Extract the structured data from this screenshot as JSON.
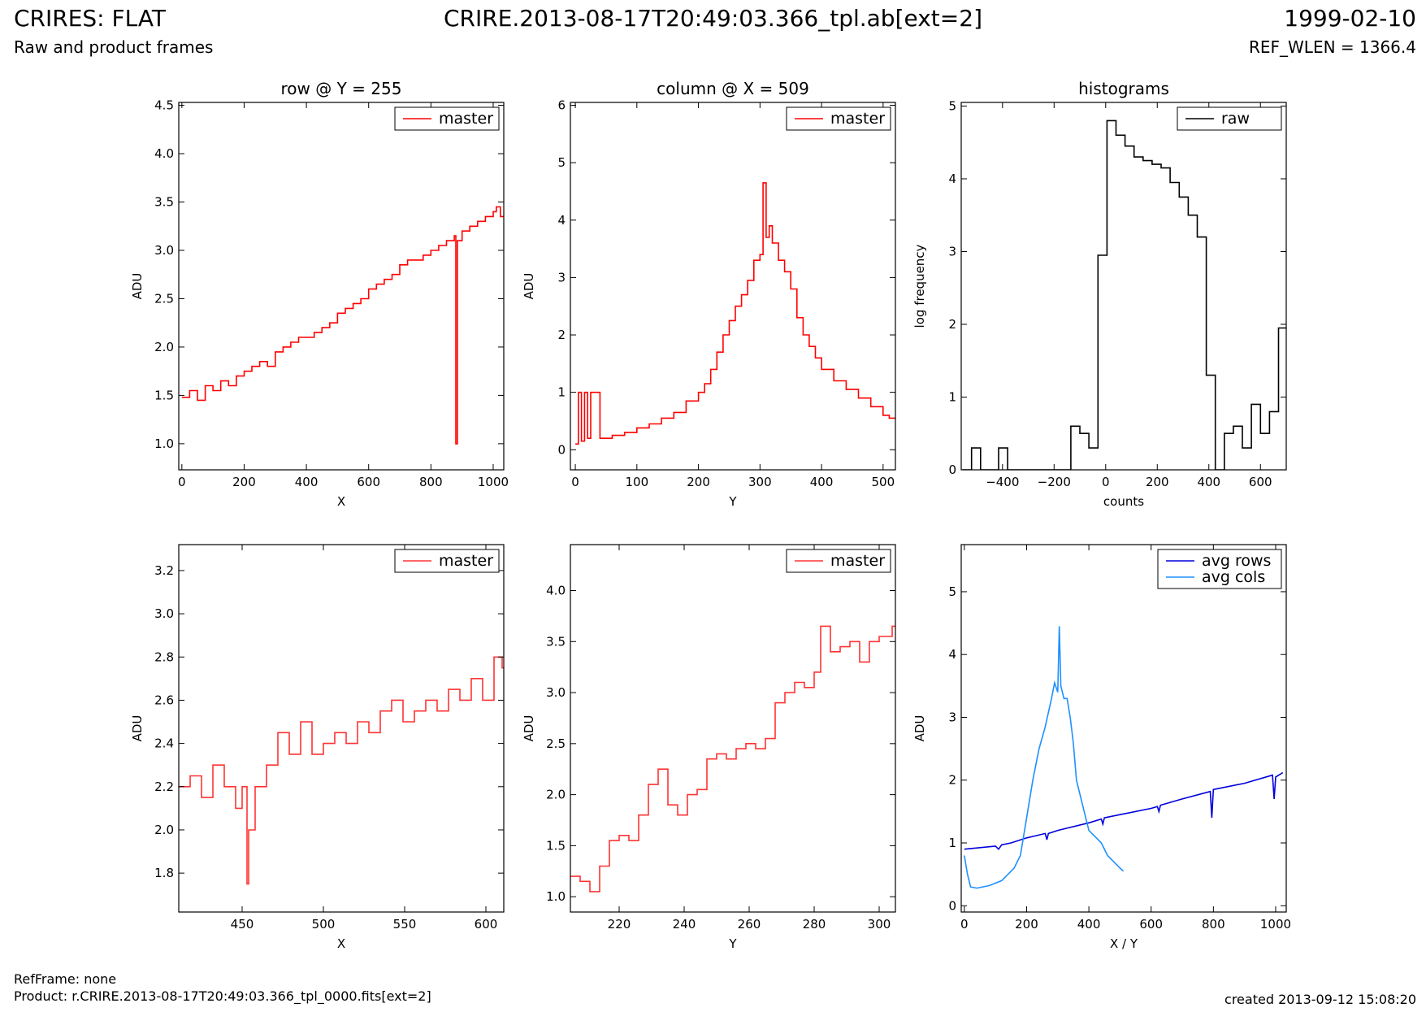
{
  "header": {
    "title": "CRIRES: FLAT",
    "center_title": "CRIRE.2013-08-17T20:49:03.366_tpl.ab[ext=2]",
    "date": "1999-02-10",
    "subtitle": "Raw and product frames",
    "ref_wlen": "REF_WLEN = 1366.4"
  },
  "footer": {
    "ref_frame": "RefFrame: none",
    "product": "Product: r.CRIRE.2013-08-17T20:49:03.366_tpl_0000.fits[ext=2]",
    "created": "created 2013-09-12 15:08:20"
  },
  "colors": {
    "master": "#ff0000",
    "master_zoom": "#ff3333",
    "raw": "#000000",
    "avg_rows": "#0000dd",
    "avg_cols": "#1e90ff"
  },
  "chart_data": [
    {
      "id": "row",
      "type": "line",
      "title": "row @ Y = 255",
      "xlabel": "X",
      "ylabel": "ADU",
      "xlim": [
        -10,
        1034
      ],
      "ylim": [
        0.73,
        4.53
      ],
      "xticks": [
        0,
        200,
        400,
        600,
        800,
        1000
      ],
      "yticks": [
        1.0,
        1.5,
        2.0,
        2.5,
        3.0,
        3.5,
        4.0,
        4.5
      ],
      "xtick_labels": [
        "0",
        "200",
        "400",
        "600",
        "800",
        "1000"
      ],
      "ytick_labels": [
        "1.0",
        "1.5",
        "2.0",
        "2.5",
        "3.0",
        "3.5",
        "4.0",
        "4.5"
      ],
      "legend": "top-right",
      "series": [
        {
          "name": "master",
          "color": "#ff0000",
          "style": "step",
          "x": [
            0,
            25,
            50,
            75,
            100,
            125,
            150,
            175,
            200,
            225,
            250,
            275,
            300,
            325,
            350,
            375,
            400,
            425,
            450,
            475,
            500,
            525,
            550,
            575,
            600,
            625,
            650,
            675,
            700,
            725,
            750,
            775,
            800,
            825,
            850,
            875,
            880,
            885,
            900,
            925,
            950,
            975,
            1000,
            1010,
            1023
          ],
          "values": [
            1.48,
            1.55,
            1.45,
            1.6,
            1.55,
            1.65,
            1.6,
            1.7,
            1.75,
            1.8,
            1.85,
            1.8,
            1.95,
            2.0,
            2.05,
            2.1,
            2.1,
            2.15,
            2.2,
            2.25,
            2.35,
            2.4,
            2.45,
            2.5,
            2.6,
            2.65,
            2.7,
            2.75,
            2.85,
            2.9,
            2.9,
            2.95,
            3.0,
            3.05,
            3.1,
            3.15,
            1.0,
            3.1,
            3.2,
            3.25,
            3.3,
            3.35,
            3.4,
            3.45,
            3.35
          ]
        }
      ]
    },
    {
      "id": "column",
      "type": "line",
      "title": "column @ X = 509",
      "xlabel": "Y",
      "ylabel": "ADU",
      "xlim": [
        -8,
        520
      ],
      "ylim": [
        -0.35,
        6.05
      ],
      "xticks": [
        0,
        100,
        200,
        300,
        400,
        500
      ],
      "yticks": [
        0,
        1,
        2,
        3,
        4,
        5,
        6
      ],
      "xtick_labels": [
        "0",
        "100",
        "200",
        "300",
        "400",
        "500"
      ],
      "ytick_labels": [
        "0",
        "1",
        "2",
        "3",
        "4",
        "5",
        "6"
      ],
      "legend": "top-right",
      "series": [
        {
          "name": "master",
          "color": "#ff0000",
          "style": "step",
          "x": [
            0,
            5,
            10,
            15,
            20,
            25,
            40,
            60,
            80,
            100,
            120,
            140,
            160,
            180,
            200,
            210,
            220,
            230,
            240,
            250,
            260,
            270,
            280,
            290,
            300,
            305,
            310,
            315,
            320,
            330,
            340,
            350,
            360,
            370,
            380,
            390,
            400,
            420,
            440,
            460,
            480,
            500,
            510
          ],
          "values": [
            0.1,
            1.0,
            0.15,
            1.0,
            0.2,
            1.0,
            0.2,
            0.25,
            0.3,
            0.38,
            0.45,
            0.55,
            0.65,
            0.85,
            1.0,
            1.15,
            1.4,
            1.7,
            2.0,
            2.25,
            2.5,
            2.7,
            2.95,
            3.3,
            3.4,
            4.65,
            3.7,
            3.9,
            3.6,
            3.3,
            3.1,
            2.8,
            2.3,
            2.0,
            1.8,
            1.6,
            1.4,
            1.2,
            1.05,
            0.9,
            0.75,
            0.6,
            0.55
          ]
        }
      ]
    },
    {
      "id": "histograms",
      "type": "line",
      "title": "histograms",
      "xlabel": "counts",
      "ylabel": "log frequency",
      "xlim": [
        -560,
        700
      ],
      "ylim": [
        0,
        5.05
      ],
      "xticks": [
        -400,
        -200,
        0,
        200,
        400,
        600
      ],
      "yticks": [
        0,
        1,
        2,
        3,
        4,
        5
      ],
      "xtick_labels": [
        "−400",
        "−200",
        "0",
        "200",
        "400",
        "600"
      ],
      "ytick_labels": [
        "0",
        "1",
        "2",
        "3",
        "4",
        "5"
      ],
      "legend": "top-right",
      "series": [
        {
          "name": "raw",
          "color": "#000000",
          "style": "step",
          "x": [
            -555,
            -520,
            -485,
            -450,
            -415,
            -380,
            -345,
            -310,
            -275,
            -240,
            -205,
            -170,
            -135,
            -100,
            -65,
            -30,
            5,
            40,
            75,
            110,
            145,
            180,
            215,
            250,
            285,
            320,
            355,
            390,
            425,
            460,
            495,
            530,
            565,
            600,
            635,
            670
          ],
          "values": [
            0,
            0.3,
            0,
            0,
            0.3,
            0,
            0,
            0,
            0,
            0,
            0,
            0,
            0.6,
            0.5,
            0.3,
            2.95,
            4.8,
            4.6,
            4.45,
            4.3,
            4.25,
            4.2,
            4.15,
            3.95,
            3.75,
            3.5,
            3.2,
            1.3,
            0,
            0.5,
            0.6,
            0.3,
            0.9,
            0.5,
            0.8,
            1.95
          ]
        }
      ]
    },
    {
      "id": "row-zoom",
      "type": "line",
      "title": "",
      "xlabel": "X",
      "ylabel": "ADU",
      "xlim": [
        411,
        611
      ],
      "ylim": [
        1.62,
        3.32
      ],
      "xticks": [
        450,
        500,
        550,
        600
      ],
      "yticks": [
        1.8,
        2.0,
        2.2,
        2.4,
        2.6,
        2.8,
        3.0,
        3.2
      ],
      "xtick_labels": [
        "450",
        "500",
        "550",
        "600"
      ],
      "ytick_labels": [
        "1.8",
        "2.0",
        "2.2",
        "2.4",
        "2.6",
        "2.8",
        "3.0",
        "3.2"
      ],
      "legend": "top-right",
      "series": [
        {
          "name": "master",
          "color": "#ff3333",
          "style": "step",
          "x": [
            411,
            418,
            425,
            432,
            439,
            446,
            450,
            453,
            454,
            458,
            465,
            472,
            479,
            486,
            493,
            500,
            507,
            514,
            521,
            528,
            535,
            542,
            549,
            556,
            563,
            570,
            577,
            584,
            591,
            598,
            605,
            610
          ],
          "values": [
            2.2,
            2.25,
            2.15,
            2.3,
            2.2,
            2.1,
            2.2,
            1.75,
            2.0,
            2.2,
            2.3,
            2.45,
            2.35,
            2.5,
            2.35,
            2.4,
            2.45,
            2.4,
            2.5,
            2.45,
            2.55,
            2.6,
            2.5,
            2.55,
            2.6,
            2.55,
            2.65,
            2.6,
            2.7,
            2.6,
            2.8,
            2.75
          ]
        }
      ]
    },
    {
      "id": "column-zoom",
      "type": "line",
      "title": "",
      "xlabel": "Y",
      "ylabel": "ADU",
      "xlim": [
        205,
        305
      ],
      "ylim": [
        0.85,
        4.45
      ],
      "xticks": [
        220,
        240,
        260,
        280,
        300
      ],
      "yticks": [
        1.0,
        1.5,
        2.0,
        2.5,
        3.0,
        3.5,
        4.0
      ],
      "xtick_labels": [
        "220",
        "240",
        "260",
        "280",
        "300"
      ],
      "ytick_labels": [
        "1.0",
        "1.5",
        "2.0",
        "2.5",
        "3.0",
        "3.5",
        "4.0"
      ],
      "legend": "top-right",
      "series": [
        {
          "name": "master",
          "color": "#ff3333",
          "style": "step",
          "x": [
            205,
            208,
            211,
            214,
            217,
            220,
            223,
            226,
            229,
            232,
            235,
            238,
            241,
            244,
            247,
            250,
            253,
            256,
            259,
            262,
            265,
            268,
            271,
            274,
            277,
            280,
            282,
            285,
            288,
            291,
            294,
            297,
            300,
            304
          ],
          "values": [
            1.2,
            1.15,
            1.05,
            1.3,
            1.55,
            1.6,
            1.55,
            1.8,
            2.1,
            2.25,
            1.9,
            1.8,
            2.0,
            2.05,
            2.35,
            2.4,
            2.35,
            2.45,
            2.5,
            2.45,
            2.55,
            2.9,
            3.0,
            3.1,
            3.05,
            3.2,
            3.65,
            3.4,
            3.45,
            3.5,
            3.3,
            3.5,
            3.55,
            3.65
          ]
        }
      ]
    },
    {
      "id": "averages",
      "type": "line",
      "title": "",
      "xlabel": "X / Y",
      "ylabel": "ADU",
      "xlim": [
        -10,
        1034
      ],
      "ylim": [
        -0.1,
        5.75
      ],
      "xticks": [
        0,
        200,
        400,
        600,
        800,
        1000
      ],
      "yticks": [
        0,
        1,
        2,
        3,
        4,
        5
      ],
      "xtick_labels": [
        "0",
        "200",
        "400",
        "600",
        "800",
        "1000"
      ],
      "ytick_labels": [
        "0",
        "1",
        "2",
        "3",
        "4",
        "5"
      ],
      "legend": "top-right",
      "series": [
        {
          "name": "avg rows",
          "color": "#0000dd",
          "style": "line",
          "x": [
            0,
            100,
            110,
            120,
            150,
            200,
            260,
            265,
            270,
            300,
            400,
            440,
            445,
            450,
            500,
            600,
            620,
            625,
            630,
            700,
            790,
            795,
            800,
            900,
            990,
            995,
            1000,
            1023
          ],
          "values": [
            0.9,
            0.95,
            0.9,
            0.97,
            1.0,
            1.08,
            1.15,
            1.05,
            1.15,
            1.2,
            1.32,
            1.38,
            1.3,
            1.4,
            1.45,
            1.55,
            1.58,
            1.5,
            1.6,
            1.7,
            1.82,
            1.4,
            1.85,
            1.95,
            2.08,
            1.7,
            2.05,
            2.12
          ]
        },
        {
          "name": "avg cols",
          "color": "#1e90ff",
          "style": "line",
          "x": [
            0,
            10,
            20,
            40,
            80,
            120,
            160,
            180,
            200,
            220,
            240,
            260,
            280,
            290,
            300,
            305,
            310,
            320,
            330,
            340,
            350,
            360,
            370,
            380,
            400,
            420,
            440,
            460,
            480,
            500,
            511
          ],
          "values": [
            0.8,
            0.5,
            0.3,
            0.28,
            0.32,
            0.4,
            0.6,
            0.8,
            1.4,
            2.0,
            2.5,
            2.85,
            3.3,
            3.55,
            3.4,
            4.45,
            3.5,
            3.3,
            3.3,
            3.0,
            2.6,
            2.0,
            1.8,
            1.6,
            1.2,
            1.1,
            1.0,
            0.8,
            0.7,
            0.6,
            0.55
          ]
        }
      ]
    }
  ]
}
